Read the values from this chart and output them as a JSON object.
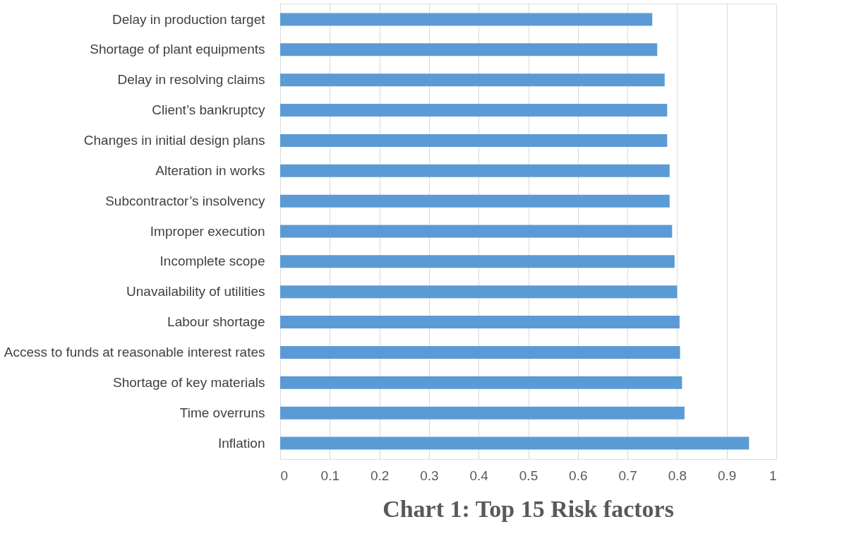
{
  "chart_data": {
    "type": "bar",
    "orientation": "horizontal",
    "title": "Chart 1: Top 15 Risk factors",
    "categories": [
      "Delay in production target",
      "Shortage of plant equipments",
      "Delay in resolving claims",
      "Client’s bankruptcy",
      "Changes in initial design plans",
      "Alteration in works",
      "Subcontractor’s insolvency",
      "Improper execution",
      "Incomplete scope",
      "Unavailability of utilities",
      "Labour shortage",
      "Access to funds at reasonable interest rates",
      "Shortage of key materials",
      "Time overruns",
      "Inflation"
    ],
    "values": [
      0.75,
      0.76,
      0.775,
      0.78,
      0.78,
      0.785,
      0.785,
      0.79,
      0.795,
      0.8,
      0.805,
      0.806,
      0.81,
      0.815,
      0.945
    ],
    "color": "#5b9bd5",
    "xlim": [
      0,
      1
    ],
    "xticks": [
      0,
      0.1,
      0.2,
      0.3,
      0.4,
      0.5,
      0.6,
      0.7,
      0.8,
      0.9,
      1
    ],
    "grid": "x"
  }
}
